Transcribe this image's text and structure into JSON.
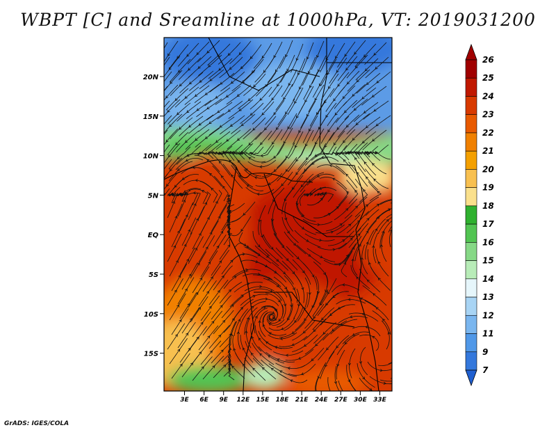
{
  "title": "WBPT [C] and Sreamline at 1000hPa, VT: 2019031200",
  "credit": "GrADS: IGES/COLA",
  "map": {
    "lat_labels": [
      "20N",
      "15N",
      "10N",
      "5N",
      "EQ",
      "5S",
      "10S",
      "15S"
    ],
    "lon_labels": [
      "3E",
      "6E",
      "9E",
      "12E",
      "15E",
      "18E",
      "21E",
      "24E",
      "27E",
      "30E",
      "33E"
    ]
  },
  "colorbar": {
    "levels": [
      "26",
      "25",
      "24",
      "23",
      "22",
      "21",
      "20",
      "19",
      "18",
      "17",
      "16",
      "15",
      "14",
      "13",
      "12",
      "11",
      "9",
      "7"
    ],
    "colors": [
      "#a00000",
      "#c01800",
      "#d83a00",
      "#e85a00",
      "#f08000",
      "#f4a000",
      "#f8c050",
      "#fae08c",
      "#2fb12f",
      "#52c452",
      "#86d886",
      "#b8ecb8",
      "#e6f6fb",
      "#a8d4f4",
      "#7ab6ef",
      "#5098e8",
      "#3478dc",
      "#1f5fd0"
    ]
  }
}
